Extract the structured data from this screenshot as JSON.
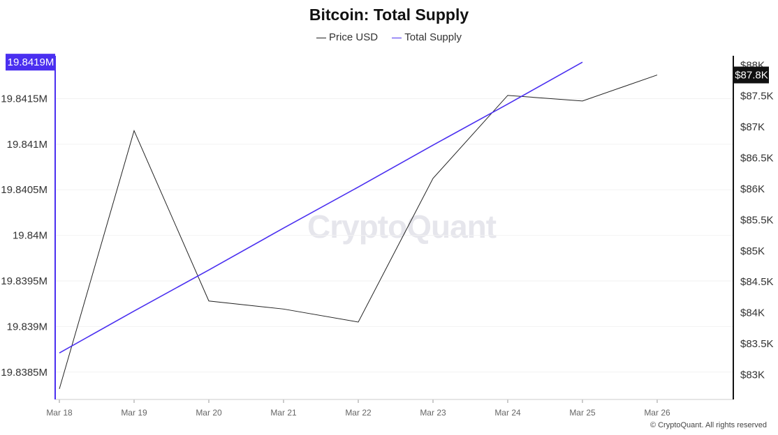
{
  "chart_data": {
    "type": "line",
    "title": "Bitcoin: Total Supply",
    "x": [
      "Mar 18",
      "Mar 19",
      "Mar 20",
      "Mar 21",
      "Mar 22",
      "Mar 23",
      "Mar 24",
      "Mar 25",
      "Mar 26"
    ],
    "series": [
      {
        "name": "Price USD",
        "axis": "right",
        "color": "#222222",
        "values": [
          82.77,
          86.94,
          84.19,
          84.06,
          83.85,
          86.17,
          87.51,
          87.42,
          87.84
        ]
      },
      {
        "name": "Total Supply",
        "axis": "left",
        "color": "#4a2ff0",
        "values": [
          19.83871,
          19.83917,
          19.83962,
          19.84008,
          19.84053,
          19.84099,
          19.84144,
          19.8419,
          null
        ]
      }
    ],
    "left_axis": {
      "unit": "M",
      "ylim": [
        19.8382,
        19.84197
      ],
      "ticks": [
        "19.8385M",
        "19.839M",
        "19.8395M",
        "19.84M",
        "19.8405M",
        "19.841M",
        "19.8415M"
      ],
      "ticks_values": [
        19.8385,
        19.839,
        19.8395,
        19.84,
        19.8405,
        19.841,
        19.8415
      ],
      "highlight_label": "19.8419M"
    },
    "right_axis": {
      "unit": "K USD",
      "ylim": [
        82.6,
        88.15
      ],
      "ticks": [
        "$83K",
        "$83.5K",
        "$84K",
        "$84.5K",
        "$85K",
        "$85.5K",
        "$86K",
        "$86.5K",
        "$87K",
        "$87.5K",
        "$88K"
      ],
      "ticks_values": [
        83,
        83.5,
        84,
        84.5,
        85,
        85.5,
        86,
        86.5,
        87,
        87.5,
        88
      ],
      "highlight_label": "$87.8K"
    },
    "grid": true,
    "legend_placement": "top-center"
  },
  "watermark": "CryptoQuant",
  "credit": "© CryptoQuant. All rights reserved"
}
